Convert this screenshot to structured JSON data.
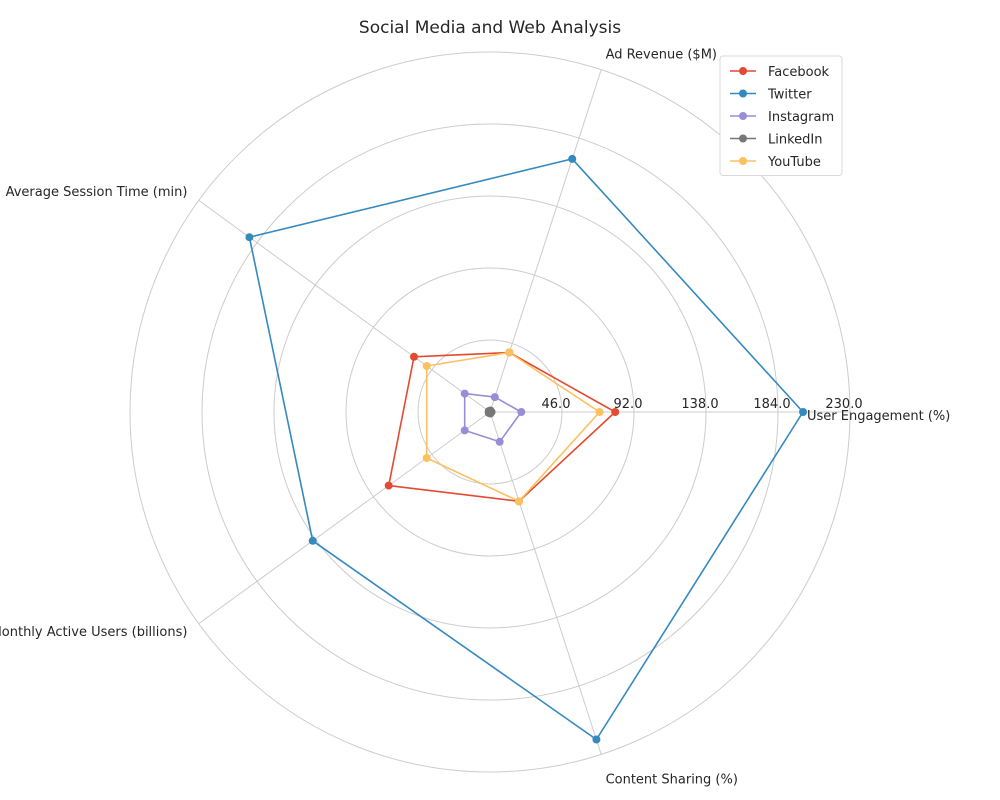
{
  "chart_data": {
    "type": "radar",
    "title": "Social Media and Web Analysis",
    "categories": [
      "User Engagement (%)",
      "Ad Revenue ($M)",
      "Average Session Time (min)",
      "Monthly Active Users (billions)",
      "Content Sharing (%)"
    ],
    "rlim": [
      0,
      230
    ],
    "rticks": [
      46,
      92,
      138,
      184,
      230
    ],
    "rtick_labels": [
      "46.0",
      "92.0",
      "138.0",
      "184.0",
      "230.0"
    ],
    "grid": true,
    "legend_position": "top-right",
    "series": [
      {
        "name": "Facebook",
        "color": "#E24A33",
        "values": [
          80,
          40,
          60,
          80,
          60
        ]
      },
      {
        "name": "Twitter",
        "color": "#348ABD",
        "values": [
          200,
          170,
          190,
          140,
          220
        ]
      },
      {
        "name": "Instagram",
        "color": "#988ED5",
        "values": [
          20,
          10,
          20,
          20,
          20
        ]
      },
      {
        "name": "LinkedIn",
        "color": "#777777",
        "values": [
          1,
          1,
          1,
          1,
          1
        ]
      },
      {
        "name": "YouTube",
        "color": "#FBC15E",
        "values": [
          70,
          40,
          50,
          50,
          60
        ]
      }
    ]
  }
}
